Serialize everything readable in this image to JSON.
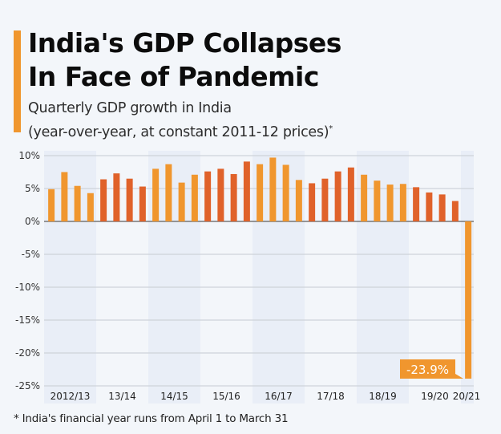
{
  "header": {
    "title_line1": "India's GDP Collapses",
    "title_line2": "In Face of Pandemic",
    "subtitle_line1": "Quarterly GDP growth in India",
    "subtitle_line2": "(year-over-year, at constant 2011-12 prices)",
    "subtitle_marker": "*"
  },
  "footnote": "* India's financial year runs from April 1 to March 31",
  "colors": {
    "accent": "#f0962e",
    "bar_light": "#f0962e",
    "bar_dark": "#e0622a",
    "band_shade": "#e9eef7",
    "band_plain": "#f3f6fa",
    "gridline": "#cfd3d9",
    "zero_line": "#777777",
    "annotation_bg": "#f0962e"
  },
  "chart_data": {
    "type": "bar",
    "title": "India's GDP Collapses In Face of Pandemic",
    "subtitle": "Quarterly GDP growth in India (year-over-year, at constant 2011-12 prices)*",
    "xlabel": "",
    "ylabel": "",
    "ylim": [
      -25,
      10
    ],
    "yticks": [
      10,
      5,
      0,
      -5,
      -10,
      -15,
      -20,
      -25
    ],
    "ytick_labels": [
      "10%",
      "5%",
      "0%",
      "-5%",
      "-10%",
      "-15%",
      "-20%",
      "-25%"
    ],
    "grid": true,
    "legend": "none",
    "fiscal_years": [
      "2012/13",
      "13/14",
      "14/15",
      "15/16",
      "16/17",
      "17/18",
      "18/19",
      "19/20",
      "20/21"
    ],
    "quarters_per_year": 4,
    "values": [
      4.9,
      7.5,
      5.4,
      4.3,
      6.4,
      7.3,
      6.5,
      5.3,
      8.0,
      8.7,
      5.9,
      7.1,
      7.6,
      8.0,
      7.2,
      9.1,
      8.7,
      9.7,
      8.6,
      6.3,
      5.8,
      6.5,
      7.6,
      8.2,
      7.1,
      6.2,
      5.6,
      5.7,
      5.2,
      4.4,
      4.1,
      3.1,
      -23.9
    ],
    "annotations": [
      {
        "index": 32,
        "label": "-23.9%"
      }
    ]
  }
}
